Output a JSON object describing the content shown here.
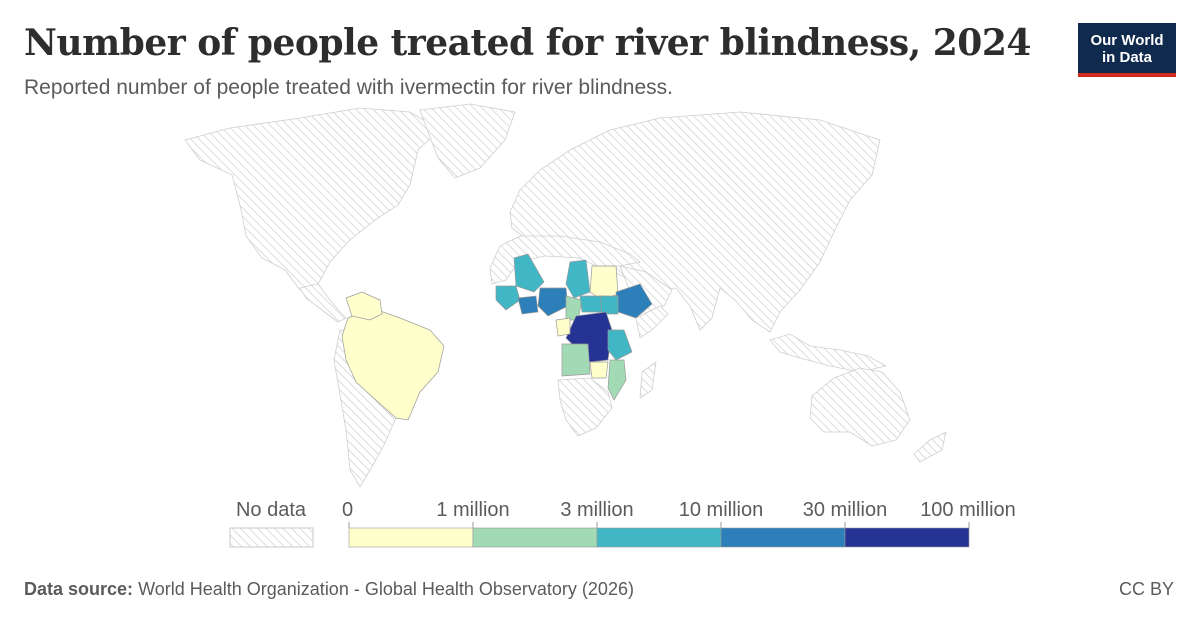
{
  "header": {
    "title": "Number of people treated for river blindness, 2024",
    "subtitle": "Reported number of people treated with ivermectin for river blindness."
  },
  "logo": {
    "line1": "Our World",
    "line2": "in Data"
  },
  "legend": {
    "no_data_label": "No data",
    "breaks": [
      "0",
      "1 million",
      "3 million",
      "10 million",
      "30 million",
      "100 million"
    ],
    "colors": [
      "#ffffcc",
      "#a1dab4",
      "#41b6c4",
      "#2c7fb8",
      "#253494"
    ],
    "no_data_color": "#e0e0e0"
  },
  "chart_data": {
    "type": "choropleth",
    "year": "2024",
    "bins": [
      {
        "range": "0 – 1 million",
        "color": "#ffffcc"
      },
      {
        "range": "1 million – 3 million",
        "color": "#a1dab4"
      },
      {
        "range": "3 million – 10 million",
        "color": "#41b6c4"
      },
      {
        "range": "10 million – 30 million",
        "color": "#2c7fb8"
      },
      {
        "range": "30 million – 100 million",
        "color": "#253494"
      }
    ],
    "regions": [
      {
        "name": "Brazil",
        "bin": 0
      },
      {
        "name": "Venezuela",
        "bin": 0
      },
      {
        "name": "Sudan",
        "bin": 0
      },
      {
        "name": "Mali",
        "bin": 2
      },
      {
        "name": "Chad",
        "bin": 2
      },
      {
        "name": "Nigeria",
        "bin": 3
      },
      {
        "name": "Ethiopia",
        "bin": 3
      },
      {
        "name": "Cameroon",
        "bin": 1
      },
      {
        "name": "Central African Republic",
        "bin": 2
      },
      {
        "name": "South Sudan",
        "bin": 2
      },
      {
        "name": "Democratic Republic of Congo",
        "bin": 4
      },
      {
        "name": "Tanzania",
        "bin": 2
      },
      {
        "name": "Angola",
        "bin": 1
      },
      {
        "name": "Malawi",
        "bin": 1
      }
    ]
  },
  "footer": {
    "source_label": "Data source:",
    "source_text": "World Health Organization - Global Health Observatory (2026)",
    "license": "CC BY"
  }
}
